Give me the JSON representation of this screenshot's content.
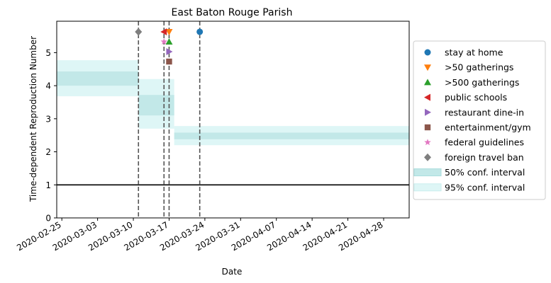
{
  "chart_data": {
    "type": "line",
    "title": "East Baton Rouge Parish",
    "xlabel": "Date",
    "ylabel": "Time-dependent Reproduction Number",
    "xlim": [
      "2020-02-24",
      "2020-05-03"
    ],
    "ylim": [
      0,
      5.95
    ],
    "x_ticks": [
      "2020-02-25",
      "2020-03-03",
      "2020-03-10",
      "2020-03-17",
      "2020-03-24",
      "2020-03-31",
      "2020-04-07",
      "2020-04-14",
      "2020-04-21",
      "2020-04-28"
    ],
    "y_ticks": [
      0,
      1,
      2,
      3,
      4,
      5
    ],
    "reference_line": {
      "y": 1,
      "color": "#000000"
    },
    "rt_periods": [
      {
        "start": "2020-02-24",
        "end": "2020-03-11",
        "ci50": [
          4.0,
          4.43
        ],
        "ci95": [
          3.68,
          4.77
        ]
      },
      {
        "start": "2020-03-11",
        "end": "2020-03-18",
        "ci50": [
          3.1,
          3.72
        ],
        "ci95": [
          2.7,
          4.2
        ]
      },
      {
        "start": "2020-03-18",
        "end": "2020-05-03",
        "ci50": [
          2.38,
          2.58
        ],
        "ci95": [
          2.2,
          2.78
        ]
      }
    ],
    "band_colors": {
      "ci50": "#c2e8e8",
      "ci95": "#def6f6"
    },
    "interventions": [
      {
        "name": "stay at home",
        "date": "2020-03-23",
        "y": 5.63,
        "marker": "circle",
        "color": "#1f77b4"
      },
      {
        "name": ">50 gatherings",
        "date": "2020-03-17",
        "y": 5.63,
        "marker": "triangle-down",
        "color": "#ff7f0e"
      },
      {
        "name": ">500 gatherings",
        "date": "2020-03-17",
        "y": 5.33,
        "marker": "triangle-up",
        "color": "#2ca02c"
      },
      {
        "name": "public schools",
        "date": "2020-03-16",
        "y": 5.63,
        "marker": "triangle-left",
        "color": "#d62728"
      },
      {
        "name": "restaurant dine-in",
        "date": "2020-03-17",
        "y": 5.03,
        "marker": "triangle-right",
        "color": "#9467bd"
      },
      {
        "name": "entertainment/gym",
        "date": "2020-03-17",
        "y": 4.73,
        "marker": "square",
        "color": "#8c564b"
      },
      {
        "name": "federal guidelines",
        "date": "2020-03-16",
        "y": 5.33,
        "marker": "star",
        "color": "#e377c2"
      },
      {
        "name": "foreign travel ban",
        "date": "2020-03-11",
        "y": 5.63,
        "marker": "diamond",
        "color": "#7f7f7f"
      }
    ],
    "vlines": [
      "2020-03-11",
      "2020-03-16",
      "2020-03-17",
      "2020-03-23"
    ],
    "legend": {
      "placement": "right",
      "entries": [
        {
          "label": "stay at home",
          "marker": "circle",
          "color": "#1f77b4"
        },
        {
          "label": ">50 gatherings",
          "marker": "triangle-down",
          "color": "#ff7f0e"
        },
        {
          "label": ">500 gatherings",
          "marker": "triangle-up",
          "color": "#2ca02c"
        },
        {
          "label": "public schools",
          "marker": "triangle-left",
          "color": "#d62728"
        },
        {
          "label": "restaurant dine-in",
          "marker": "triangle-right",
          "color": "#9467bd"
        },
        {
          "label": "entertainment/gym",
          "marker": "square",
          "color": "#8c564b"
        },
        {
          "label": "federal guidelines",
          "marker": "star",
          "color": "#e377c2"
        },
        {
          "label": "foreign travel ban",
          "marker": "diamond",
          "color": "#7f7f7f"
        },
        {
          "label": "50% conf. interval",
          "marker": "patch50",
          "color": "#c2e8e8"
        },
        {
          "label": "95% conf. interval",
          "marker": "patch95",
          "color": "#def6f6"
        }
      ]
    }
  }
}
